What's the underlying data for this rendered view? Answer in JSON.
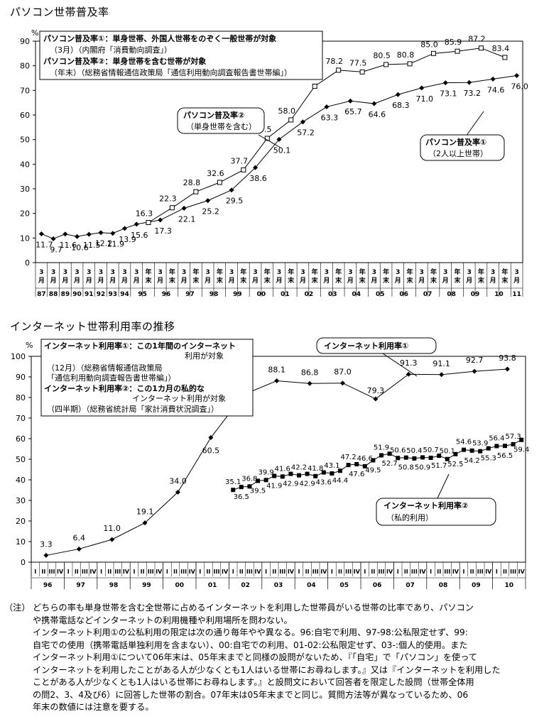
{
  "charts": [
    {
      "title": "パソコン世帯普及率",
      "unit": "%",
      "legend_lines": [
        "パソコン普及率①：単身世帯、外国人世帯をのぞく一般世帯が対象",
        "（3月）（内閣府「消費動向調査」）",
        "パソコン普及率②：単身世帯を含む世帯が対象",
        "（年末）（総務省情報通信政策局「通信利用動向調査報告書世帯編」）"
      ],
      "callout1": [
        "パソコン普及率②",
        "（単身世帯を含む）"
      ],
      "callout2": [
        "パソコン普及率①",
        "（2人以上世帯）"
      ]
    },
    {
      "title": "インターネット世帯利用率の推移",
      "unit": "%",
      "legend_lines": [
        "インターネット利用率①：この1年間のインターネット",
        "利用が対象",
        "（12月）（総務省情報通信政策局",
        "「通信利用動向調査報告書世帯編」）",
        "インターネット利用率②：この1カ月の私的な",
        "インターネット利用が対象",
        "（四半期）（総務省統計局「家計消費状況調査」）"
      ],
      "callout1": [
        "インターネット利用率①"
      ],
      "callout2": [
        "インターネット利用率②",
        "（私的利用）"
      ]
    }
  ],
  "chart_data": [
    {
      "type": "line",
      "title": "パソコン世帯普及率",
      "ylabel": "%",
      "ylim": [
        0,
        90
      ],
      "yticks": [
        0,
        10,
        20,
        30,
        40,
        50,
        60,
        70,
        80,
        90
      ],
      "grid": false,
      "x_years": [
        "87",
        "88",
        "89",
        "90",
        "91",
        "92",
        "93",
        "94",
        "95",
        "96",
        "97",
        "98",
        "99",
        "00",
        "01",
        "02",
        "03",
        "04",
        "05",
        "06",
        "07",
        "08",
        "09",
        "10",
        "11"
      ],
      "series": [
        {
          "name": "パソコン普及率①",
          "marker": "diamond",
          "x": [
            "87/3",
            "88/3",
            "89/3",
            "90/3",
            "91/3",
            "92/3",
            "93/3",
            "94/3",
            "95/3",
            "96/3",
            "97/3",
            "98/3",
            "99/3",
            "00/3",
            "01/3",
            "02/3",
            "03/3",
            "04/3",
            "05/3",
            "06/3",
            "07/3",
            "08/3",
            "09/3",
            "10/3",
            "11/3"
          ],
          "values": [
            11.7,
            9.7,
            11.6,
            10.6,
            11.5,
            12.2,
            11.9,
            13.9,
            15.6,
            17.3,
            22.1,
            25.2,
            29.5,
            38.6,
            50.1,
            57.2,
            63.3,
            65.7,
            64.6,
            68.3,
            71.0,
            73.1,
            73.2,
            74.6,
            76.0
          ]
        },
        {
          "name": "パソコン普及率②",
          "marker": "square-open",
          "x": [
            "95年末",
            "96年末",
            "97年末",
            "98年末",
            "99年末",
            "00年末",
            "01年末",
            "02年末",
            "03年末",
            "04年末",
            "05年末",
            "06年末",
            "07年末",
            "08年末",
            "09年末",
            "10年末"
          ],
          "values": [
            16.3,
            22.3,
            28.8,
            32.6,
            37.7,
            50.5,
            58.0,
            71.7,
            78.2,
            77.5,
            80.5,
            80.8,
            85.0,
            85.9,
            87.2,
            83.4
          ]
        }
      ]
    },
    {
      "type": "line",
      "title": "インターネット世帯利用率の推移",
      "ylabel": "%",
      "ylim": [
        0,
        100
      ],
      "yticks": [
        0,
        10,
        20,
        30,
        40,
        50,
        60,
        70,
        80,
        90,
        100
      ],
      "grid": false,
      "x_years": [
        "96",
        "97",
        "98",
        "99",
        "00",
        "01",
        "02",
        "03",
        "04",
        "05",
        "06",
        "07",
        "08",
        "09",
        "10"
      ],
      "quarters": [
        "I",
        "II",
        "III",
        "IV"
      ],
      "series": [
        {
          "name": "インターネット利用率①",
          "marker": "diamond",
          "x": [
            "96",
            "97",
            "98",
            "99",
            "00",
            "01",
            "02",
            "03",
            "04",
            "05",
            "06",
            "07",
            "08",
            "09",
            "10"
          ],
          "values": [
            3.3,
            6.4,
            11.0,
            19.1,
            34.0,
            60.5,
            81.4,
            88.1,
            86.8,
            87.0,
            79.3,
            91.3,
            91.1,
            92.7,
            93.8
          ]
        },
        {
          "name": "インターネット利用率②",
          "marker": "square",
          "x": [
            "02 I",
            "02 II",
            "02 III",
            "02 IV",
            "03 I",
            "03 II",
            "03 III",
            "03 IV",
            "04 I",
            "04 II",
            "04 III",
            "04 IV",
            "05 I",
            "05 II",
            "05 III",
            "05 IV",
            "06 I",
            "06 II",
            "06 III",
            "06 IV",
            "07 I",
            "07 II",
            "07 III",
            "07 IV",
            "08 I",
            "08 II",
            "08 III",
            "08 IV",
            "09 I",
            "09 II",
            "09 III",
            "09 IV",
            "10 I",
            "10 II",
            "10 III",
            "10 IV"
          ],
          "values": [
            35.1,
            36.5,
            36.8,
            39.5,
            39.9,
            41.9,
            41.6,
            42.9,
            42.2,
            42.9,
            41.8,
            43.6,
            43.1,
            44.4,
            47.2,
            47.6,
            46.6,
            49.5,
            51.9,
            52.7,
            50.6,
            50.8,
            50.4,
            50.9,
            50.7,
            51.7,
            50.1,
            52.5,
            54.6,
            54.2,
            53.9,
            55.3,
            56.4,
            56.5,
            57.3,
            59.4
          ]
        }
      ]
    }
  ],
  "note": {
    "head": "（注）",
    "lines": [
      "どちらの率も単身世帯を含む全世帯に占めるインターネットを利用した世帯員がいる世帯の比率であり、パソコン",
      "や携帯電話などインターネットの利用機種や利用場所を問わない。",
      "インターネット利用①の公私利用の限定は次の通り毎年やや異なる。96:自宅で利用、97-98:公私限定せず、99:",
      "自宅での使用（携帯電話単独利用を含まない）、00:自宅での利用、01-02:公私限定せず、03-:個人的使用。また",
      "インターネット利用①について06年末は、05年末までと同様の設問がないため、『「自宅」で「パソコン」を使って",
      "インターネットを利用したことがある人が少なくとも1人はいる世帯にお尋ねします。』又は『インターネットを利用した",
      "ことがある人が少なくとも1人はいる世帯にお尋ねします。』と設問文において回答者を限定した設問（世帯全体用",
      "の問2、3、4及び6）に回答した世帯の割合。07年末は05年末までと同じ。質問方法等が異なっているため、06",
      "年末の数値には注意を要する。"
    ]
  }
}
